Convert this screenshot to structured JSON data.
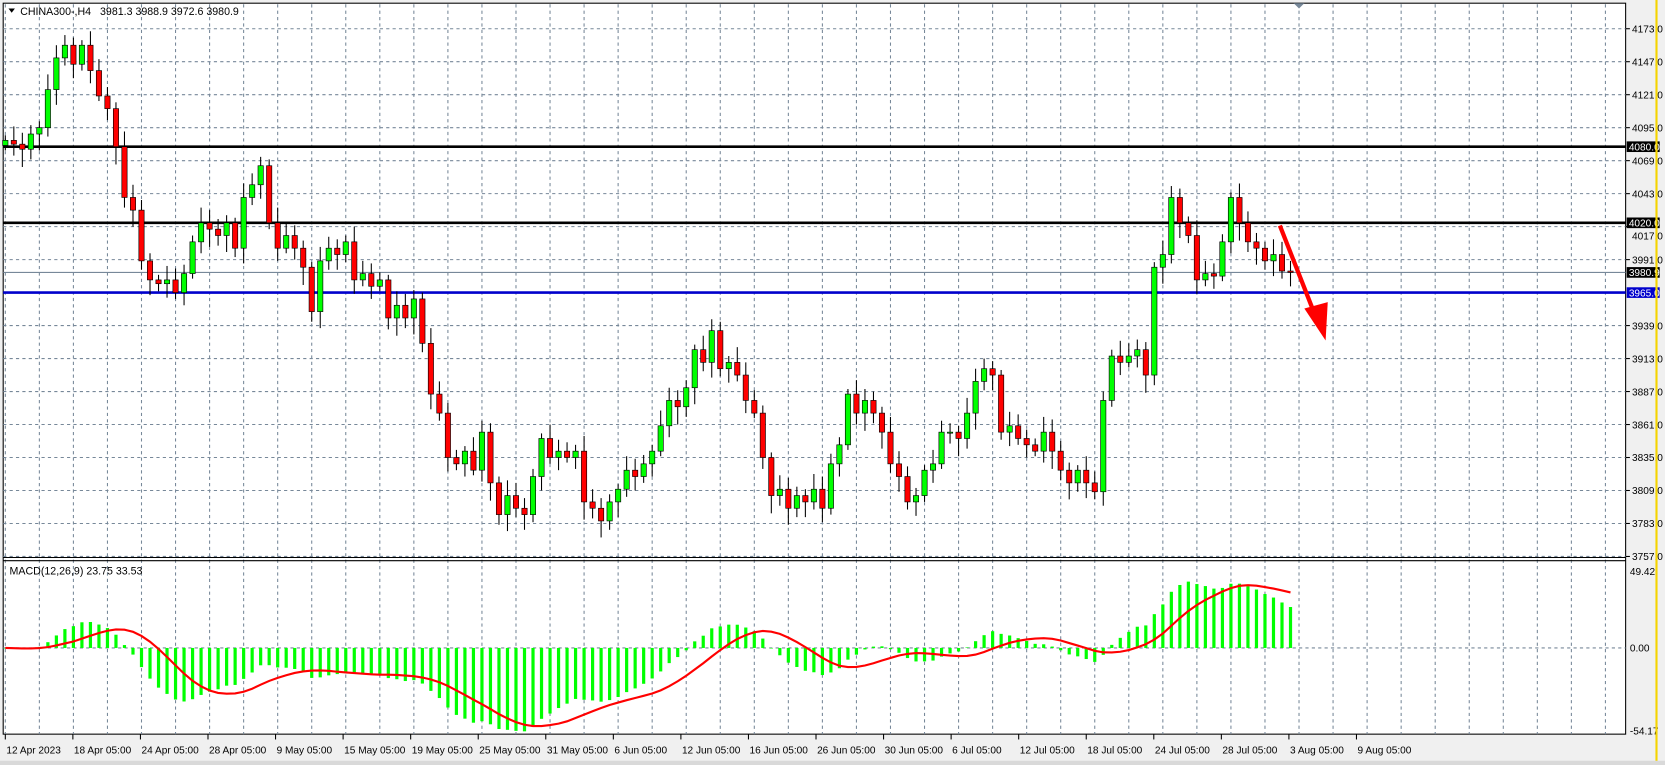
{
  "header": {
    "symbol": "CHINA300-,H4",
    "ohlc": "3981.3 3988.9 3972.6 3980.9",
    "menu_icon": "triangle-down-icon"
  },
  "macd_header": "MACD(12,26,9) 23.75 33.53",
  "colors": {
    "bull": "#00ff00",
    "bear": "#ff0000",
    "grid": "#778899",
    "support_line": "#0000cc",
    "resistance_line": "#000000",
    "macd_hist": "#00ff00",
    "macd_signal": "#ff0000",
    "arrow": "#ff0000"
  },
  "chart_data": [
    {
      "type": "candlestick",
      "symbol": "CHINA300-",
      "timeframe": "H4",
      "ylim": [
        3757.0,
        4173.0
      ],
      "y_ticks": [
        "4173.0",
        "4147.0",
        "4121.0",
        "4095.0",
        "4069.0",
        "4043.0",
        "4017.0",
        "3991.0",
        "3939.0",
        "3913.0",
        "3887.0",
        "3861.0",
        "3835.0",
        "3809.0",
        "3783.0",
        "3757.0"
      ],
      "x_tick_labels": [
        "12 Apr 2023",
        "18 Apr 05:00",
        "24 Apr 05:00",
        "28 Apr 05:00",
        "9 May 05:00",
        "15 May 05:00",
        "19 May 05:00",
        "25 May 05:00",
        "31 May 05:00",
        "6 Jun 05:00",
        "12 Jun 05:00",
        "16 Jun 05:00",
        "26 Jun 05:00",
        "30 Jun 05:00",
        "6 Jul 05:00",
        "12 Jul 05:00",
        "18 Jul 05:00",
        "24 Jul 05:00",
        "28 Jul 05:00",
        "3 Aug 05:00",
        "9 Aug 05:00"
      ],
      "grid": true,
      "close": [
        4085,
        4082,
        4078,
        4090,
        4095,
        4125,
        4150,
        4160,
        4145,
        4160,
        4140,
        4120,
        4110,
        4080,
        4040,
        4030,
        3990,
        3975,
        3972,
        3975,
        3965,
        3980,
        4005,
        4020,
        4015,
        4010,
        4020,
        4000,
        4040,
        4050,
        4065,
        4020,
        4000,
        4010,
        4000,
        3985,
        3950,
        3990,
        4000,
        3995,
        4005,
        3975,
        3980,
        3970,
        3975,
        3945,
        3955,
        3945,
        3960,
        3925,
        3885,
        3870,
        3835,
        3830,
        3840,
        3825,
        3855,
        3815,
        3790,
        3805,
        3795,
        3790,
        3820,
        3850,
        3835,
        3840,
        3835,
        3840,
        3800,
        3795,
        3785,
        3800,
        3810,
        3825,
        3820,
        3830,
        3840,
        3860,
        3880,
        3875,
        3890,
        3920,
        3910,
        3935,
        3905,
        3910,
        3900,
        3880,
        3870,
        3835,
        3805,
        3810,
        3795,
        3805,
        3800,
        3810,
        3795,
        3830,
        3845,
        3885,
        3870,
        3880,
        3870,
        3855,
        3830,
        3820,
        3800,
        3805,
        3825,
        3830,
        3855,
        3855,
        3850,
        3870,
        3895,
        3905,
        3900,
        3855,
        3860,
        3850,
        3845,
        3840,
        3855,
        3840,
        3825,
        3815,
        3825,
        3815,
        3808,
        3880,
        3915,
        3910,
        3915,
        3920,
        3900,
        3985,
        3995,
        4040,
        4020,
        4010,
        3975,
        3980,
        3978,
        4005,
        4040,
        4020,
        4005,
        4000,
        3990,
        3995,
        3982,
        3980.9
      ],
      "horizontal_lines": [
        {
          "price": 4080.0,
          "label": "4080.0",
          "color": "#000000"
        },
        {
          "price": 4020.0,
          "label": "4020.0",
          "color": "#000000"
        },
        {
          "price": 3980.9,
          "label": "3980.9",
          "color": "#000000",
          "role": "current-price"
        },
        {
          "price": 3965.0,
          "label": "3965.0",
          "color": "#0000cc"
        }
      ],
      "annotation": {
        "type": "arrow",
        "direction": "down",
        "color": "#ff0000"
      }
    },
    {
      "type": "bar+line",
      "indicator": "MACD(12,26,9)",
      "macd": 23.75,
      "signal": 33.53,
      "ylim": [
        -54.17,
        49.42
      ],
      "y_ticks": [
        "49.42",
        "0.00",
        "-54.17"
      ]
    }
  ]
}
